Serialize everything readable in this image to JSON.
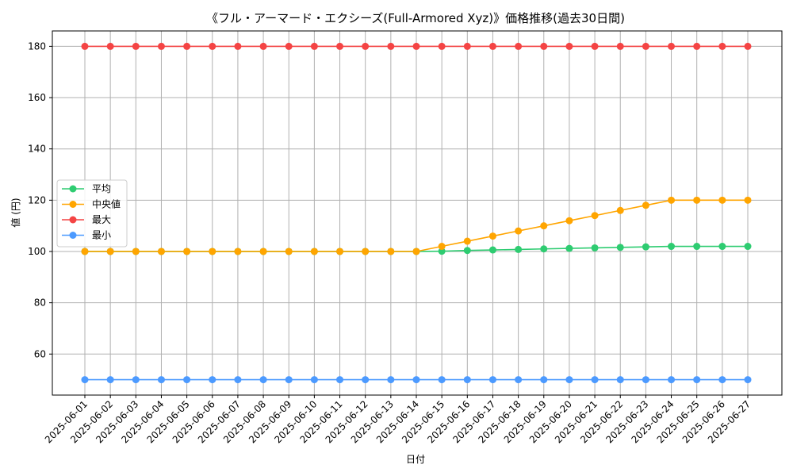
{
  "chart_data": {
    "type": "line",
    "title": "《フル・アーマード・エクシーズ(Full-Armored Xyz)》価格推移(過去30日間)",
    "xlabel": "日付",
    "ylabel": "値 (円)",
    "ylim": [
      44,
      186
    ],
    "yticks": [
      60,
      80,
      100,
      120,
      140,
      160,
      180
    ],
    "grid": true,
    "legend_position": "center-left",
    "x": [
      "2025-06-01",
      "2025-06-02",
      "2025-06-03",
      "2025-06-04",
      "2025-06-05",
      "2025-06-06",
      "2025-06-07",
      "2025-06-08",
      "2025-06-09",
      "2025-06-10",
      "2025-06-11",
      "2025-06-12",
      "2025-06-13",
      "2025-06-14",
      "2025-06-15",
      "2025-06-16",
      "2025-06-17",
      "2025-06-18",
      "2025-06-19",
      "2025-06-20",
      "2025-06-21",
      "2025-06-22",
      "2025-06-23",
      "2025-06-24",
      "2025-06-25",
      "2025-06-26",
      "2025-06-27"
    ],
    "series": [
      {
        "name": "平均",
        "color": "#2ecc71",
        "values": [
          100,
          100,
          100,
          100,
          100,
          100,
          100,
          100,
          100,
          100,
          100,
          100,
          100,
          100,
          100.1,
          100.4,
          100.6,
          100.8,
          101.0,
          101.2,
          101.4,
          101.6,
          101.8,
          102,
          102,
          102,
          102
        ]
      },
      {
        "name": "中央値",
        "color": "#ffa500",
        "values": [
          100,
          100,
          100,
          100,
          100,
          100,
          100,
          100,
          100,
          100,
          100,
          100,
          100,
          100,
          102,
          104,
          106,
          108,
          110,
          112,
          114,
          116,
          118,
          120,
          120,
          120,
          120
        ]
      },
      {
        "name": "最大",
        "color": "#f44444",
        "values": [
          180,
          180,
          180,
          180,
          180,
          180,
          180,
          180,
          180,
          180,
          180,
          180,
          180,
          180,
          180,
          180,
          180,
          180,
          180,
          180,
          180,
          180,
          180,
          180,
          180,
          180,
          180
        ]
      },
      {
        "name": "最小",
        "color": "#4c9aff",
        "values": [
          50,
          50,
          50,
          50,
          50,
          50,
          50,
          50,
          50,
          50,
          50,
          50,
          50,
          50,
          50,
          50,
          50,
          50,
          50,
          50,
          50,
          50,
          50,
          50,
          50,
          50,
          50
        ]
      }
    ]
  }
}
